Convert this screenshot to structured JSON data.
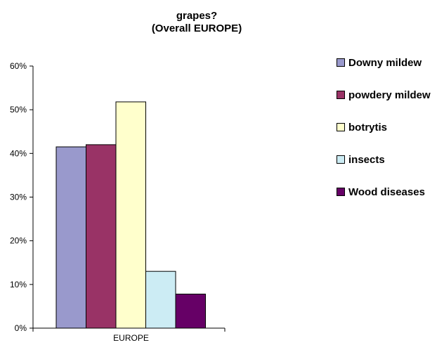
{
  "chart_data": {
    "type": "bar",
    "title": "grapes?",
    "subtitle": "(Overall EUROPE)",
    "categories": [
      "EUROPE"
    ],
    "xlabel": "",
    "ylabel": "",
    "ylim": [
      0,
      0.6
    ],
    "yticks": [
      "0%",
      "10%",
      "20%",
      "30%",
      "40%",
      "50%",
      "60%"
    ],
    "grid": false,
    "legend_position": "right",
    "series": [
      {
        "name": "Downy mildew",
        "values": [
          0.415
        ],
        "color": "#9999cc"
      },
      {
        "name": "powdery mildew",
        "values": [
          0.42
        ],
        "color": "#993366"
      },
      {
        "name": "botrytis",
        "values": [
          0.518
        ],
        "color": "#ffffcc"
      },
      {
        "name": "insects",
        "values": [
          0.13
        ],
        "color": "#ccecf4"
      },
      {
        "name": "Wood diseases",
        "values": [
          0.078
        ],
        "color": "#660066"
      }
    ]
  }
}
